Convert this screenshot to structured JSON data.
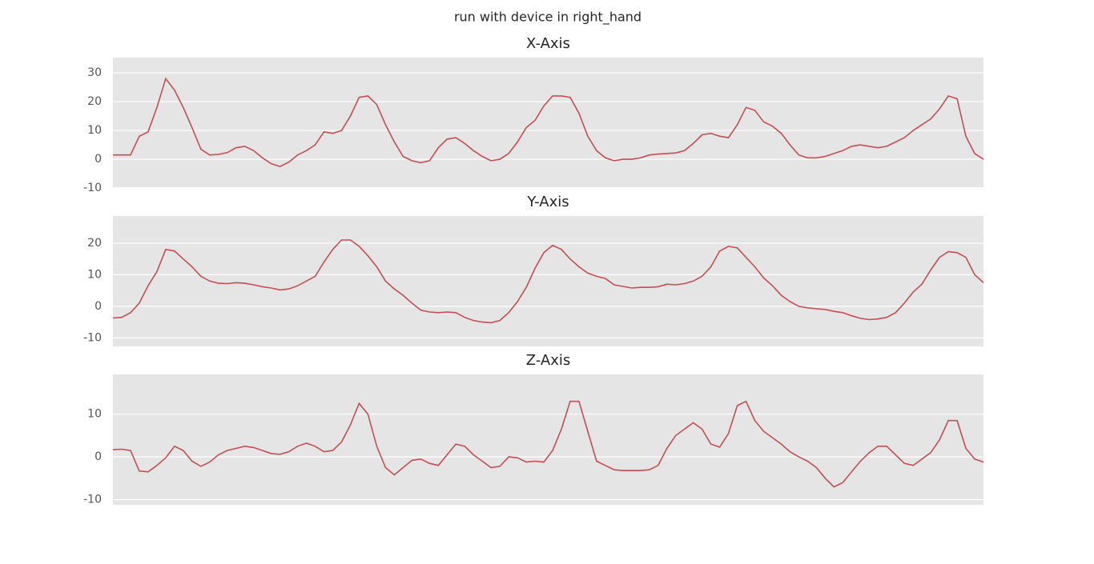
{
  "title": "run with device in right_hand",
  "chart_data": [
    {
      "type": "line",
      "title": "X-Axis",
      "color": "#c44e52",
      "grid": true,
      "ylim": [
        -9.7,
        35.3
      ],
      "yticks": [
        -10,
        0,
        10,
        20,
        30
      ],
      "values": [
        1.5,
        1.5,
        1.5,
        8,
        9.5,
        18,
        28,
        24,
        18,
        11,
        3.5,
        1.5,
        1.7,
        2.3,
        4,
        4.5,
        3,
        0.5,
        -1.5,
        -2.5,
        -1,
        1.5,
        3,
        5,
        9.5,
        9,
        10,
        15,
        21.5,
        22,
        19,
        12,
        6,
        1,
        -0.5,
        -1.2,
        -0.5,
        4,
        7,
        7.5,
        5.5,
        3,
        1,
        -0.5,
        0,
        2,
        6,
        11,
        13.5,
        18.5,
        22,
        22,
        21.5,
        16,
        8,
        3,
        0.5,
        -0.5,
        0,
        0,
        0.5,
        1.5,
        1.8,
        2,
        2.2,
        3,
        5.5,
        8.5,
        9,
        8,
        7.5,
        12,
        18,
        17,
        13,
        11.5,
        9,
        5,
        1.5,
        0.5,
        0.5,
        1,
        2,
        3,
        4.5,
        5,
        4.5,
        4,
        4.5,
        6,
        7.5,
        10,
        12,
        14,
        17.5,
        22,
        21,
        8,
        2,
        0
      ]
    },
    {
      "type": "line",
      "title": "Y-Axis",
      "color": "#c44e52",
      "grid": true,
      "ylim": [
        -12.7,
        28.6
      ],
      "yticks": [
        -10,
        0,
        10,
        20
      ],
      "values": [
        -3.7,
        -3.5,
        -2,
        1,
        6.5,
        11,
        18,
        17.5,
        15,
        12.5,
        9.5,
        8,
        7.3,
        7.2,
        7.5,
        7.3,
        6.8,
        6.2,
        5.8,
        5.2,
        5.5,
        6.5,
        8,
        9.5,
        14,
        18,
        21,
        21,
        19,
        16,
        12.5,
        8,
        5.5,
        3.5,
        1,
        -1.2,
        -1.8,
        -2,
        -1.8,
        -2,
        -3.5,
        -4.5,
        -5,
        -5.2,
        -4.5,
        -2,
        1.5,
        6,
        12,
        17,
        19.3,
        18,
        15,
        12.5,
        10.5,
        9.5,
        8.8,
        6.8,
        6.3,
        5.8,
        6,
        6,
        6.2,
        7,
        6.8,
        7.2,
        8,
        9.5,
        12.5,
        17.5,
        19,
        18.5,
        15.5,
        12.5,
        9,
        6.5,
        3.5,
        1.5,
        0,
        -0.5,
        -0.8,
        -1,
        -1.6,
        -2,
        -3,
        -3.8,
        -4.2,
        -4,
        -3.5,
        -2,
        1,
        4.5,
        7,
        11.5,
        15.5,
        17.3,
        17,
        15.5,
        10,
        7.5
      ]
    },
    {
      "type": "line",
      "title": "Z-Axis",
      "color": "#c44e52",
      "grid": true,
      "ylim": [
        -11.2,
        19.3
      ],
      "yticks": [
        -10,
        0,
        10
      ],
      "values": [
        1.7,
        1.8,
        1.5,
        -3.3,
        -3.5,
        -2,
        -0.2,
        2.5,
        1.5,
        -1,
        -2.2,
        -1.2,
        0.5,
        1.5,
        2,
        2.5,
        2.2,
        1.5,
        0.8,
        0.6,
        1.2,
        2.5,
        3.2,
        2.5,
        1.2,
        1.5,
        3.5,
        7.5,
        12.5,
        10,
        2.5,
        -2.5,
        -4.2,
        -2.5,
        -0.8,
        -0.5,
        -1.5,
        -2,
        0.5,
        3,
        2.5,
        0.5,
        -1,
        -2.5,
        -2.2,
        0,
        -0.2,
        -1.2,
        -1,
        -1.2,
        1.5,
        6.5,
        13,
        13,
        6,
        -1,
        -2,
        -3,
        -3.2,
        -3.2,
        -3.2,
        -3,
        -2,
        2,
        5,
        6.5,
        8,
        6.5,
        3,
        2.3,
        5.5,
        12,
        13,
        8.5,
        6,
        4.5,
        3,
        1.2,
        0,
        -1,
        -2.5,
        -5,
        -7,
        -6,
        -3.5,
        -1,
        1,
        2.5,
        2.5,
        0.5,
        -1.5,
        -2,
        -0.5,
        1,
        4,
        8.5,
        8.5,
        2,
        -0.5,
        -1.2
      ]
    }
  ]
}
